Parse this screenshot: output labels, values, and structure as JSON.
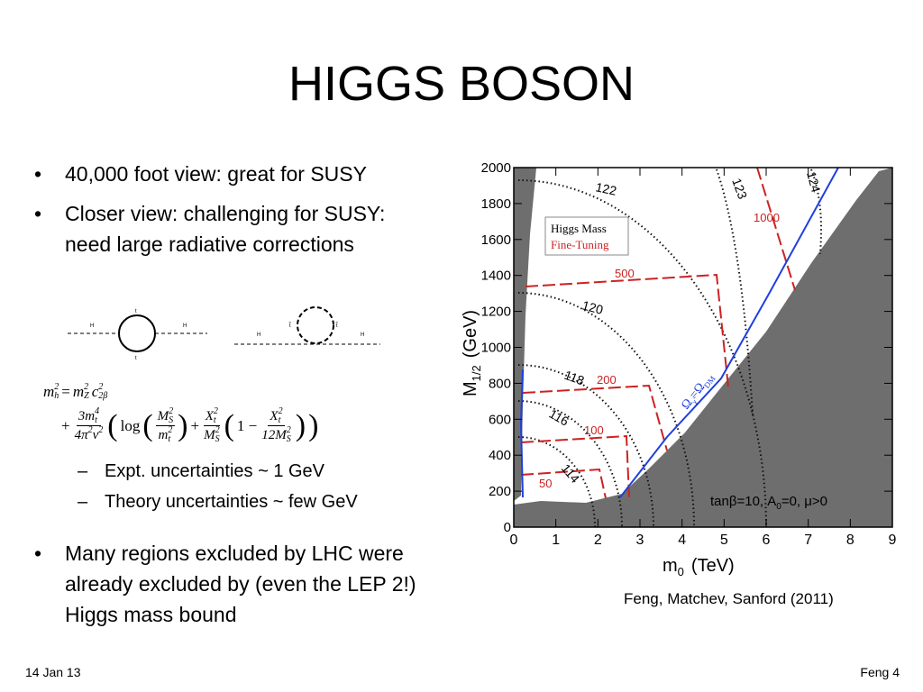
{
  "title": "HIGGS BOSON",
  "bullets": [
    "40,000 foot view: great for SUSY",
    "Closer view: challenging for SUSY: need large radiative corrections"
  ],
  "diagrams": [
    {
      "labels": [
        "H",
        "H",
        "t",
        "t"
      ]
    },
    {
      "labels": [
        "H",
        "H",
        "t̃",
        "t̃"
      ]
    }
  ],
  "formula": {
    "line1": [
      {
        "t": "m",
        "sub": "h",
        "sup": "2"
      },
      {
        "op": "="
      },
      {
        "t": "m",
        "sub": "Z",
        "sup": "2"
      },
      {
        "t": "c",
        "sub": "2β",
        "sup": "2"
      }
    ],
    "line2": [
      {
        "op": "+"
      },
      {
        "num": [
          {
            "t": "3"
          },
          {
            "t": "m",
            "sub": "t",
            "sup": "4"
          }
        ],
        "den": [
          {
            "t": "4π",
            "sup": "2"
          },
          {
            "t": "v",
            "sup": "2"
          }
        ]
      },
      {
        "op": "("
      },
      {
        "op": "log"
      },
      {
        "op": "("
      },
      {
        "num": [
          {
            "t": "M",
            "sub": "S",
            "sup": "2"
          }
        ],
        "den": [
          {
            "t": "m",
            "sub": "t",
            "sup": "2"
          }
        ]
      },
      {
        "op": ")"
      },
      {
        "op": "+"
      },
      {
        "num": [
          {
            "t": "X",
            "sub": "t",
            "sup": "2"
          }
        ],
        "den": [
          {
            "t": "M",
            "sub": "S",
            "sup": "2"
          }
        ]
      },
      {
        "op": "("
      },
      {
        "op": "1 −"
      },
      {
        "num": [
          {
            "t": "X",
            "sub": "t",
            "sup": "2"
          }
        ],
        "den": [
          {
            "t": "12M",
            "sub": "S",
            "sup": "2"
          }
        ]
      },
      {
        "op": ")"
      },
      {
        "op": ")"
      }
    ]
  },
  "sub_bullets": [
    "Expt. uncertainties ~ 1 GeV",
    "Theory uncertainties ~ few GeV"
  ],
  "bullets_2": [
    "Many regions excluded by LHC were already excluded by (even the LEP 2!) Higgs mass bound"
  ],
  "chart_data": {
    "type": "contour",
    "xlabel": {
      "main": "m",
      "sub": "0",
      "unit": "(TeV)"
    },
    "ylabel": {
      "main": "M",
      "sub": "1/2",
      "unit": "(GeV)"
    },
    "xlim": [
      0,
      9
    ],
    "xticks": [
      0,
      1,
      2,
      3,
      4,
      5,
      6,
      7,
      8,
      9
    ],
    "ylim": [
      0,
      2000
    ],
    "yticks": [
      0,
      200,
      400,
      600,
      800,
      1000,
      1200,
      1400,
      1600,
      1800,
      2000
    ],
    "legend": [
      {
        "name": "Higgs Mass",
        "color": "#000000"
      },
      {
        "name": "Fine-Tuning",
        "color": "#cc2222"
      }
    ],
    "higgs_mass_labels": [
      114,
      116,
      118,
      120,
      122,
      123,
      124
    ],
    "fine_tuning_labels": [
      50,
      100,
      200,
      500,
      1000
    ],
    "relic_label": [
      "Ω",
      "χ̃",
      "=Ω",
      "DM"
    ],
    "annotation": [
      "tanβ=10, A",
      "0",
      "=0, μ>0"
    ]
  },
  "citation": "Feng, Matchev, Sanford (2011)",
  "footer": {
    "date": "14 Jan 13",
    "page": "Feng 4"
  }
}
